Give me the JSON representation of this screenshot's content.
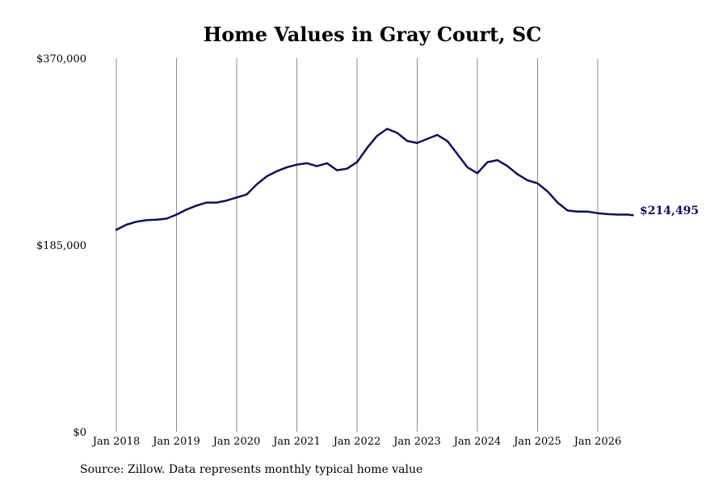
{
  "chart_data": {
    "type": "line",
    "title": "Home Values in Gray Court, SC",
    "xlabel": "",
    "ylabel": "",
    "ylim": [
      0,
      370000
    ],
    "yticks": [
      {
        "value": 0,
        "label": "$0"
      },
      {
        "value": 185000,
        "label": "$185,000"
      },
      {
        "value": 370000,
        "label": "$370,000"
      }
    ],
    "xticks": [
      {
        "value": "2018-01",
        "label": "Jan 2018"
      },
      {
        "value": "2019-01",
        "label": "Jan 2019"
      },
      {
        "value": "2020-01",
        "label": "Jan 2020"
      },
      {
        "value": "2021-01",
        "label": "Jan 2021"
      },
      {
        "value": "2022-01",
        "label": "Jan 2022"
      },
      {
        "value": "2023-01",
        "label": "Jan 2023"
      },
      {
        "value": "2024-01",
        "label": "Jan 2024"
      },
      {
        "value": "2025-01",
        "label": "Jan 2025"
      },
      {
        "value": "2026-01",
        "label": "Jan 2026"
      }
    ],
    "grid": "vertical",
    "line_color": "#0f0f5c",
    "last_value_label": "$214,495",
    "series": [
      {
        "name": "",
        "x": [
          "2018-01",
          "2018-03",
          "2018-05",
          "2018-07",
          "2018-09",
          "2018-11",
          "2019-01",
          "2019-03",
          "2019-05",
          "2019-07",
          "2019-09",
          "2019-11",
          "2020-01",
          "2020-03",
          "2020-05",
          "2020-07",
          "2020-09",
          "2020-11",
          "2021-01",
          "2021-03",
          "2021-05",
          "2021-07",
          "2021-09",
          "2021-11",
          "2022-01",
          "2022-03",
          "2022-05",
          "2022-07",
          "2022-09",
          "2022-11",
          "2023-01",
          "2023-03",
          "2023-05",
          "2023-07",
          "2023-09",
          "2023-11",
          "2024-01",
          "2024-03",
          "2024-05",
          "2024-07",
          "2024-09",
          "2024-11",
          "2025-01",
          "2025-03",
          "2025-05",
          "2025-07",
          "2025-09",
          "2025-11",
          "2026-01",
          "2026-03",
          "2026-05",
          "2026-07",
          "2026-08"
        ],
        "values": [
          200000,
          205000,
          208000,
          209500,
          210000,
          211000,
          215000,
          220000,
          224000,
          227000,
          227000,
          229000,
          232000,
          235000,
          245000,
          253000,
          258000,
          262000,
          264500,
          266000,
          263000,
          266000,
          259000,
          260500,
          267000,
          281000,
          293000,
          300000,
          296000,
          288000,
          286000,
          290000,
          294000,
          288000,
          275000,
          262000,
          256000,
          267000,
          269000,
          263000,
          255000,
          249000,
          246000,
          238000,
          227000,
          219000,
          218000,
          218000,
          216500,
          215500,
          215000,
          215000,
          214495
        ]
      }
    ]
  },
  "source": "Source: Zillow. Data represents monthly typical home value"
}
